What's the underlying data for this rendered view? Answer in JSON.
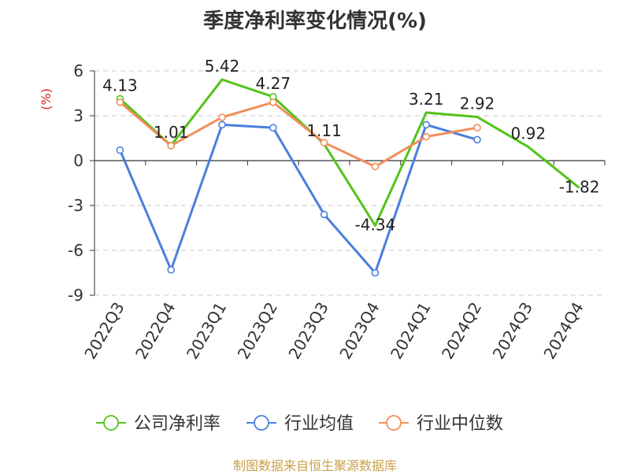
{
  "chart_data": {
    "type": "line",
    "title": "季度净利率变化情况(%)",
    "ylabel": "(%)",
    "ylim": [
      -9,
      6
    ],
    "yticks": [
      6,
      3,
      0,
      -3,
      -6,
      -9
    ],
    "ytick_labels": [
      "6",
      "3",
      "0",
      "-3",
      "-6",
      "-9"
    ],
    "grid": true,
    "legend_position": "bottom",
    "categories": [
      "2022Q3",
      "2022Q4",
      "2023Q1",
      "2023Q2",
      "2023Q3",
      "2023Q4",
      "2024Q1",
      "2024Q2",
      "2024Q3",
      "2024Q4"
    ],
    "series": [
      {
        "name": "公司净利率",
        "color": "#52c41a",
        "values": [
          4.13,
          1.01,
          5.42,
          4.27,
          1.11,
          -4.34,
          3.21,
          2.92,
          0.92,
          -1.82
        ],
        "labels": [
          "4.13",
          "1.01",
          "5.42",
          "4.27",
          "1.11",
          "-4.34",
          "3.21",
          "2.92",
          "0.92",
          "-1.82"
        ],
        "show_markers": [
          true,
          true,
          false,
          true,
          false,
          false,
          false,
          false,
          false,
          false
        ]
      },
      {
        "name": "行业均值",
        "color": "#4a7fdc",
        "values": [
          0.7,
          -7.3,
          2.4,
          2.2,
          -3.6,
          -7.5,
          2.4,
          1.4,
          null,
          null
        ]
      },
      {
        "name": "行业中位数",
        "color": "#f28e5a",
        "values": [
          3.9,
          1.0,
          2.9,
          3.9,
          1.2,
          -0.4,
          1.6,
          2.2,
          null,
          null
        ]
      }
    ]
  },
  "footer": {
    "source": "制图数据来自恒生聚源数据库"
  }
}
